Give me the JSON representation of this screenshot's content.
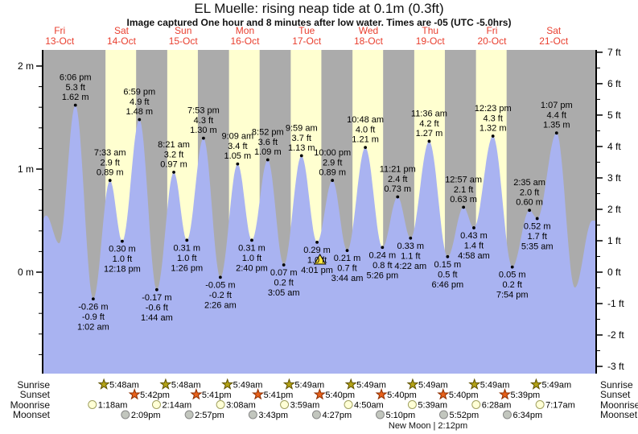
{
  "header": {
    "title": "EL Muelle: rising  neap tide at 0.1m (0.3ft)",
    "subtitle": "Image captured One hour and 8 minutes after low water. Times are -05 (UTC -5.0hrs)"
  },
  "colors": {
    "night_band": "#ababab",
    "day_band": "#ffffd0",
    "tide_fill": "#a9b3f1",
    "day_label": "#e93e2e",
    "axis": "#000000",
    "annotation_text": "#000000",
    "capture_marker_fill": "#ffe640",
    "sunrise_star_fill": "#b3a216",
    "sunrise_star_stroke": "#5f5200",
    "sunset_star_fill": "#e8611a",
    "sunset_star_stroke": "#8c2e00",
    "moonrise_circle_fill": "#ffffd6",
    "moonrise_circle_stroke": "#a0a060",
    "moonset_circle_fill": "#c2c6be",
    "moonset_circle_stroke": "#888888"
  },
  "chart_data": {
    "type": "area",
    "title": "EL Muelle: rising  neap tide at 0.1m (0.3ft)",
    "subtitle": "Image captured One hour and 8 minutes after low water. Times are -05 (UTC -5.0hrs)",
    "series_name": "tide height",
    "legend": "none",
    "grid": false,
    "x_axis_days": [
      {
        "name": "Fri",
        "date": "13-Oct"
      },
      {
        "name": "Sat",
        "date": "14-Oct"
      },
      {
        "name": "Sun",
        "date": "15-Oct"
      },
      {
        "name": "Mon",
        "date": "16-Oct"
      },
      {
        "name": "Tue",
        "date": "17-Oct"
      },
      {
        "name": "Wed",
        "date": "18-Oct"
      },
      {
        "name": "Thu",
        "date": "19-Oct"
      },
      {
        "name": "Fri",
        "date": "20-Oct"
      },
      {
        "name": "Sat",
        "date": "21-Oct"
      }
    ],
    "y_axis_left": {
      "unit": "m",
      "tick_values": [
        2,
        1,
        0
      ],
      "tick_labels": [
        "2 m",
        "1 m",
        "0 m"
      ],
      "minor_step": 0.2
    },
    "y_axis_right": {
      "unit": "ft",
      "tick_values": [
        7,
        6,
        5,
        4,
        3,
        2,
        1,
        0,
        -1,
        -2,
        -3
      ],
      "tick_labels": [
        "7 ft",
        "6 ft",
        "5 ft",
        "4 ft",
        "3 ft",
        "2 ft",
        "1 ft",
        "0 ft",
        "-1 ft",
        "-2 ft",
        "-3 ft"
      ],
      "minor_step": 0.5
    },
    "ylim_m": [
      -0.98,
      2.16
    ],
    "daylight_band_days": [
      1,
      2,
      3,
      4,
      5,
      6,
      7
    ],
    "daylight_hours": {
      "start": 5.8,
      "end": 17.7
    },
    "tide_events": [
      {
        "kind": "high",
        "day": 0,
        "time": "6:42 am",
        "height_m": 0.55,
        "labeled": false
      },
      {
        "kind": "low",
        "day": 0,
        "time": "11:48 am",
        "height_m": 0.28,
        "labeled": false
      },
      {
        "kind": "high",
        "day": 0,
        "time": "6:06 pm",
        "height_m": 1.62,
        "ft": "5.3 ft",
        "m": "1.62 m",
        "labeled": true
      },
      {
        "kind": "low",
        "day": 1,
        "time": "1:02 am",
        "height_m": -0.26,
        "ft": "-0.9 ft",
        "m": "-0.26 m",
        "labeled": true
      },
      {
        "kind": "high",
        "day": 1,
        "time": "7:33 am",
        "height_m": 0.89,
        "ft": "2.9 ft",
        "m": "0.89 m",
        "labeled": true
      },
      {
        "kind": "low",
        "day": 1,
        "time": "12:18 pm",
        "height_m": 0.3,
        "ft": "1.0 ft",
        "m": "0.30 m",
        "labeled": true
      },
      {
        "kind": "high",
        "day": 1,
        "time": "6:59 pm",
        "height_m": 1.48,
        "ft": "4.9 ft",
        "m": "1.48 m",
        "labeled": true
      },
      {
        "kind": "low",
        "day": 2,
        "time": "1:44 am",
        "height_m": -0.17,
        "ft": "-0.6 ft",
        "m": "-0.17 m",
        "labeled": true
      },
      {
        "kind": "high",
        "day": 2,
        "time": "8:21 am",
        "height_m": 0.97,
        "ft": "3.2 ft",
        "m": "0.97 m",
        "labeled": true
      },
      {
        "kind": "low",
        "day": 2,
        "time": "1:26 pm",
        "height_m": 0.31,
        "ft": "1.0 ft",
        "m": "0.31 m",
        "labeled": true
      },
      {
        "kind": "high",
        "day": 2,
        "time": "7:53 pm",
        "height_m": 1.3,
        "ft": "4.3 ft",
        "m": "1.30 m",
        "labeled": true
      },
      {
        "kind": "low",
        "day": 3,
        "time": "2:26 am",
        "height_m": -0.05,
        "ft": "-0.2 ft",
        "m": "-0.05 m",
        "labeled": true
      },
      {
        "kind": "high",
        "day": 3,
        "time": "9:09 am",
        "height_m": 1.05,
        "ft": "3.4 ft",
        "m": "1.05 m",
        "labeled": true
      },
      {
        "kind": "low",
        "day": 3,
        "time": "2:40 pm",
        "height_m": 0.31,
        "ft": "1.0 ft",
        "m": "0.31 m",
        "labeled": true
      },
      {
        "kind": "high",
        "day": 3,
        "time": "8:52 pm",
        "height_m": 1.09,
        "ft": "3.6 ft",
        "m": "1.09 m",
        "labeled": true
      },
      {
        "kind": "low",
        "day": 4,
        "time": "3:05 am",
        "height_m": 0.07,
        "ft": "0.2 ft",
        "m": "0.07 m",
        "labeled": true
      },
      {
        "kind": "high",
        "day": 4,
        "time": "9:59 am",
        "height_m": 1.13,
        "ft": "3.7 ft",
        "m": "1.13 m",
        "labeled": true
      },
      {
        "kind": "low",
        "day": 4,
        "time": "4:01 pm",
        "height_m": 0.29,
        "ft": "1.0 ft",
        "m": "0.29 m",
        "labeled": true
      },
      {
        "kind": "high",
        "day": 4,
        "time": "10:00 pm",
        "height_m": 0.89,
        "ft": "2.9 ft",
        "m": "0.89 m",
        "labeled": true
      },
      {
        "kind": "low",
        "day": 5,
        "time": "3:44 am",
        "height_m": 0.21,
        "ft": "0.7 ft",
        "m": "0.21 m",
        "labeled": true
      },
      {
        "kind": "high",
        "day": 5,
        "time": "10:48 am",
        "height_m": 1.21,
        "ft": "4.0 ft",
        "m": "1.21 m",
        "labeled": true
      },
      {
        "kind": "low",
        "day": 5,
        "time": "5:26 pm",
        "height_m": 0.24,
        "ft": "0.8 ft",
        "m": "0.24 m",
        "labeled": true
      },
      {
        "kind": "high",
        "day": 5,
        "time": "11:21 pm",
        "height_m": 0.73,
        "ft": "2.4 ft",
        "m": "0.73 m",
        "labeled": true
      },
      {
        "kind": "low",
        "day": 6,
        "time": "4:22 am",
        "height_m": 0.33,
        "ft": "1.1 ft",
        "m": "0.33 m",
        "labeled": true
      },
      {
        "kind": "high",
        "day": 6,
        "time": "11:36 am",
        "height_m": 1.27,
        "ft": "4.2 ft",
        "m": "1.27 m",
        "labeled": true
      },
      {
        "kind": "low",
        "day": 6,
        "time": "6:46 pm",
        "height_m": 0.15,
        "ft": "0.5 ft",
        "m": "0.15 m",
        "labeled": true
      },
      {
        "kind": "high",
        "day": 7,
        "time": "12:57 am",
        "height_m": 0.63,
        "ft": "2.1 ft",
        "m": "0.63 m",
        "labeled": true
      },
      {
        "kind": "low",
        "day": 7,
        "time": "4:58 am",
        "height_m": 0.43,
        "ft": "1.4 ft",
        "m": "0.43 m",
        "labeled": true
      },
      {
        "kind": "high",
        "day": 7,
        "time": "12:23 pm",
        "height_m": 1.32,
        "ft": "4.3 ft",
        "m": "1.32 m",
        "labeled": true
      },
      {
        "kind": "low",
        "day": 7,
        "time": "7:54 pm",
        "height_m": 0.05,
        "ft": "0.2 ft",
        "m": "0.05 m",
        "labeled": true
      },
      {
        "kind": "high",
        "day": 8,
        "time": "2:35 am",
        "height_m": 0.6,
        "ft": "2.0 ft",
        "m": "0.60 m",
        "labeled": true
      },
      {
        "kind": "low",
        "day": 8,
        "time": "5:35 am",
        "height_m": 0.52,
        "ft": "1.7 ft",
        "m": "0.52 m",
        "labeled": true
      },
      {
        "kind": "high",
        "day": 8,
        "time": "1:07 pm",
        "height_m": 1.35,
        "ft": "4.4 ft",
        "m": "1.35 m",
        "labeled": true
      },
      {
        "kind": "low",
        "day": 8,
        "time": "8:12 pm",
        "height_m": -0.15,
        "labeled": false
      },
      {
        "kind": "high",
        "day": 9,
        "time": "3:00 am",
        "height_m": 0.5,
        "labeled": false
      }
    ],
    "capture_marker": {
      "day": 4,
      "time": "5:09 pm",
      "note": "One hour and 8 minutes after low water"
    }
  },
  "astro": {
    "row_labels": [
      "Sunrise",
      "Sunset",
      "Moonrise",
      "Moonset"
    ],
    "sunrise": [
      {
        "day": 1,
        "time": "5:48am"
      },
      {
        "day": 2,
        "time": "5:48am"
      },
      {
        "day": 3,
        "time": "5:49am"
      },
      {
        "day": 4,
        "time": "5:49am"
      },
      {
        "day": 5,
        "time": "5:49am"
      },
      {
        "day": 6,
        "time": "5:49am"
      },
      {
        "day": 7,
        "time": "5:49am"
      },
      {
        "day": 8,
        "time": "5:49am"
      }
    ],
    "sunset": [
      {
        "day": 1,
        "time": "5:42pm"
      },
      {
        "day": 2,
        "time": "5:41pm"
      },
      {
        "day": 3,
        "time": "5:41pm"
      },
      {
        "day": 4,
        "time": "5:40pm"
      },
      {
        "day": 5,
        "time": "5:40pm"
      },
      {
        "day": 6,
        "time": "5:40pm"
      },
      {
        "day": 7,
        "time": "5:39pm"
      }
    ],
    "moonrise": [
      {
        "day": 1,
        "time": "1:18am"
      },
      {
        "day": 2,
        "time": "2:14am"
      },
      {
        "day": 3,
        "time": "3:08am"
      },
      {
        "day": 4,
        "time": "3:59am"
      },
      {
        "day": 5,
        "time": "4:50am"
      },
      {
        "day": 6,
        "time": "5:39am"
      },
      {
        "day": 7,
        "time": "6:28am"
      },
      {
        "day": 8,
        "time": "7:17am"
      }
    ],
    "moonset": [
      {
        "day": 1,
        "time": "2:09pm"
      },
      {
        "day": 2,
        "time": "2:57pm"
      },
      {
        "day": 3,
        "time": "3:43pm"
      },
      {
        "day": 4,
        "time": "4:27pm"
      },
      {
        "day": 5,
        "time": "5:10pm"
      },
      {
        "day": 6,
        "time": "5:52pm"
      },
      {
        "day": 7,
        "time": "6:34pm"
      }
    ],
    "new_moon": "New Moon | 2:12pm"
  }
}
